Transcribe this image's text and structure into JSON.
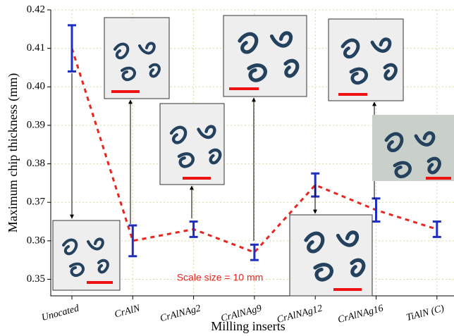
{
  "chart_data": {
    "type": "errorbar-line",
    "xlabel": "Milling inserts",
    "ylabel": "Maximum chip thickness (mm)",
    "annotation": "Scale size = 10 mm",
    "categories": [
      "Unocated",
      "CrAlN",
      "CrAlNAg2",
      "CrAlNAg9",
      "CrAlNAg12",
      "CrAlNAg16",
      "TiAlN (C)"
    ],
    "values": [
      0.41,
      0.36,
      0.363,
      0.357,
      0.3745,
      0.368,
      0.363
    ],
    "errors": [
      0.006,
      0.004,
      0.002,
      0.002,
      0.003,
      0.003,
      0.002
    ],
    "line_color": "#e8251f",
    "bar_color": "#1f2fbf",
    "ylim": [
      0.3457,
      0.42
    ],
    "yticks": [
      0.35,
      0.36,
      0.37,
      0.38,
      0.39,
      {
        "value": 0.4,
        "label": "0.40"
      },
      0.41,
      0.42
    ],
    "grid": true
  }
}
